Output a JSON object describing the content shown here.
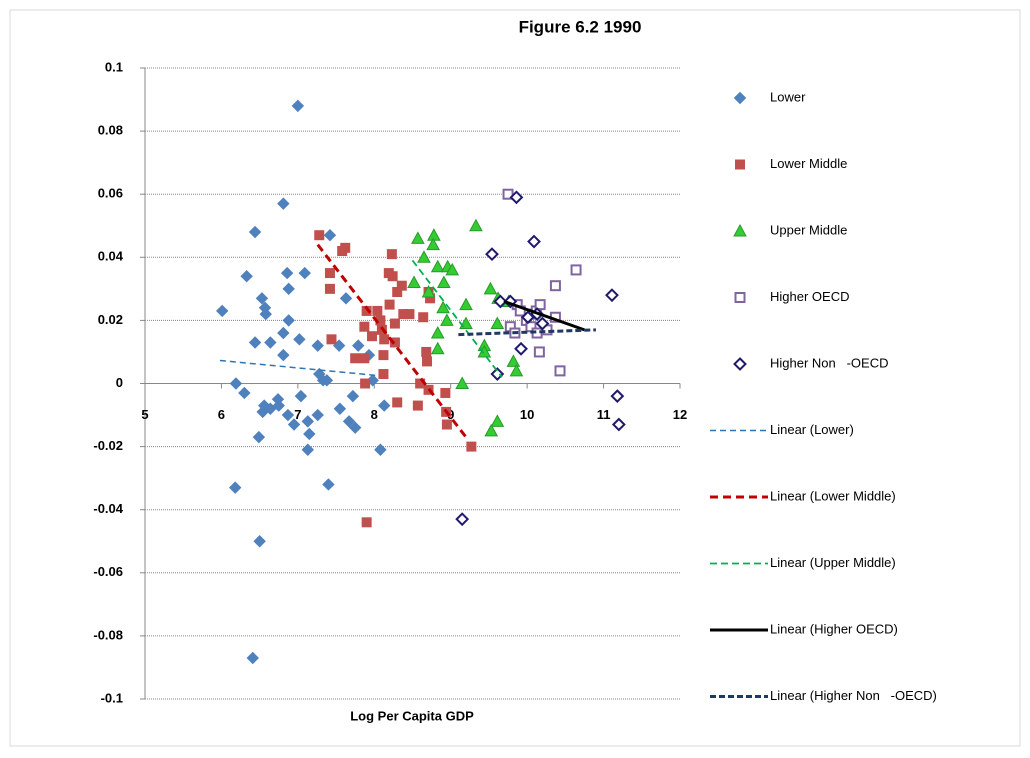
{
  "chart_data": {
    "type": "scatter",
    "title": "Figure 6.2 1990",
    "x_label": "Log Per Capita GDP",
    "xlim": [
      5,
      12
    ],
    "ylim": [
      -0.1,
      0.1
    ],
    "xticks": [
      5,
      6,
      7,
      8,
      9,
      10,
      11,
      12
    ],
    "yticks": [
      0.1,
      0.08,
      0.06,
      0.04,
      0.02,
      0,
      -0.02,
      -0.04,
      -0.06,
      -0.08,
      -0.1
    ],
    "grid": true,
    "legend": "right",
    "series": [
      {
        "name": "Lower",
        "color": "#4f81bd",
        "marker": "diamond",
        "filled": true,
        "x": [
          6.01,
          7.0,
          6.44,
          6.81,
          6.33,
          6.53,
          6.57,
          6.58,
          6.44,
          6.64,
          6.86,
          6.88,
          6.88,
          6.81,
          6.81,
          7.09,
          7.02,
          7.42,
          7.63,
          7.54,
          7.26,
          6.19,
          6.3,
          6.56,
          6.54,
          6.64,
          6.75,
          6.49,
          6.87,
          6.95,
          7.04,
          7.13,
          7.15,
          7.13,
          7.26,
          7.28,
          7.33,
          7.38,
          7.55,
          7.67,
          7.75,
          7.72,
          7.93,
          7.79,
          7.98,
          8.08,
          8.13,
          7.4,
          6.18,
          6.5,
          6.41,
          6.74
        ],
        "values": [
          0.023,
          0.088,
          0.048,
          0.057,
          0.034,
          0.027,
          0.024,
          0.022,
          0.013,
          0.013,
          0.035,
          0.03,
          0.02,
          0.016,
          0.009,
          0.035,
          0.014,
          0.047,
          0.027,
          0.012,
          0.012,
          0,
          -0.003,
          -0.007,
          -0.009,
          -0.008,
          -0.007,
          -0.017,
          -0.01,
          -0.013,
          -0.004,
          -0.012,
          -0.016,
          -0.021,
          -0.01,
          0.003,
          0.001,
          0.001,
          -0.008,
          -0.012,
          -0.014,
          -0.004,
          0.009,
          0.012,
          0.001,
          -0.021,
          -0.007,
          -0.032,
          -0.033,
          -0.05,
          -0.087,
          -0.005
        ]
      },
      {
        "name": "Lower Middle",
        "color": "#c0504d",
        "marker": "square",
        "filled": true,
        "x": [
          7.28,
          7.62,
          7.58,
          7.42,
          7.42,
          7.44,
          7.75,
          7.87,
          7.97,
          8.04,
          7.9,
          8.08,
          7.87,
          8.1,
          8.13,
          8.12,
          8.12,
          7.88,
          8.23,
          8.19,
          8.24,
          8.3,
          8.36,
          8.2,
          8.27,
          8.38,
          8.27,
          8.3,
          7.9,
          8.64,
          8.71,
          8.73,
          8.68,
          8.69,
          8.6,
          8.71,
          8.57,
          8.93,
          8.94,
          8.95,
          9.27,
          8.46
        ],
        "values": [
          0.047,
          0.043,
          0.042,
          0.035,
          0.03,
          0.014,
          0.008,
          0.018,
          0.015,
          0.023,
          0.023,
          0.02,
          0.008,
          0.017,
          0.014,
          0.009,
          0.003,
          0,
          0.041,
          0.035,
          0.034,
          0.029,
          0.031,
          0.025,
          0.019,
          0.022,
          0.013,
          -0.006,
          -0.044,
          0.021,
          0.029,
          0.027,
          0.01,
          0.007,
          0,
          -0.002,
          -0.007,
          -0.003,
          -0.009,
          -0.013,
          -0.02,
          0.022
        ]
      },
      {
        "name": "Upper Middle",
        "color": "#33cc33",
        "marker": "triangle",
        "filled": true,
        "x": [
          8.57,
          8.78,
          8.77,
          8.65,
          8.83,
          8.96,
          9.02,
          8.91,
          8.52,
          8.71,
          9.33,
          9.52,
          8.9,
          9.2,
          8.83,
          8.95,
          8.83,
          9.2,
          9.44,
          9.44,
          9.61,
          9.62,
          9.76,
          9.82,
          9.86,
          9.15,
          9.61,
          9.53
        ],
        "values": [
          0.046,
          0.047,
          0.044,
          0.04,
          0.037,
          0.037,
          0.036,
          0.032,
          0.032,
          0.029,
          0.05,
          0.03,
          0.024,
          0.025,
          0.016,
          0.02,
          0.011,
          0.019,
          0.012,
          0.01,
          0.019,
          0.027,
          0.026,
          0.007,
          0.004,
          0,
          -0.012,
          -0.015
        ]
      },
      {
        "name": "Higher OECD",
        "color": "#8064a2",
        "marker": "square",
        "filled": false,
        "x": [
          9.75,
          9.87,
          9.91,
          9.78,
          9.84,
          9.99,
          10.08,
          10.05,
          10.13,
          10.12,
          10.17,
          10.26,
          10.16,
          10.37,
          10.37,
          10.43,
          10.64
        ],
        "values": [
          0.06,
          0.025,
          0.023,
          0.018,
          0.016,
          0.02,
          0.022,
          0.018,
          0.016,
          0.023,
          0.025,
          0.017,
          0.01,
          0.031,
          0.021,
          0.004,
          0.036
        ]
      },
      {
        "name": "Higher Non   -OECD",
        "color": "#1f1a6b",
        "marker": "diamond",
        "filled": false,
        "x": [
          9.86,
          10.09,
          9.54,
          9.65,
          9.78,
          9.61,
          9.92,
          10.01,
          10.13,
          10.2,
          11.11,
          11.18,
          11.2,
          9.15
        ],
        "values": [
          0.059,
          0.045,
          0.041,
          0.026,
          0.026,
          0.003,
          0.011,
          0.021,
          0.022,
          0.019,
          0.028,
          -0.004,
          -0.013,
          -0.043
        ]
      }
    ],
    "trendlines": [
      {
        "name": "Linear (Lower)",
        "color": "#2e75b6",
        "dash": "6,4",
        "width": 1.5,
        "x": [
          5.98,
          8.05
        ],
        "values": [
          0.0073,
          0.0025
        ]
      },
      {
        "name": "Linear (Lower Middle)",
        "color": "#c00000",
        "dash": "8,5",
        "width": 3,
        "x": [
          7.26,
          9.2
        ],
        "values": [
          0.044,
          -0.017
        ]
      },
      {
        "name": "Linear (Upper Middle)",
        "color": "#00b050",
        "dash": "7,4",
        "width": 1.8,
        "x": [
          8.5,
          9.67
        ],
        "values": [
          0.039,
          0.002
        ]
      },
      {
        "name": "Linear (Higher OECD)",
        "color": "#000000",
        "dash": "none",
        "width": 3,
        "x": [
          9.7,
          10.75
        ],
        "values": [
          0.026,
          0.017
        ]
      },
      {
        "name": "Linear (Higher Non   -OECD)",
        "color": "#1f3864",
        "dash": "6,3",
        "width": 3,
        "x": [
          9.1,
          10.9
        ],
        "values": [
          0.0155,
          0.017
        ]
      }
    ]
  }
}
